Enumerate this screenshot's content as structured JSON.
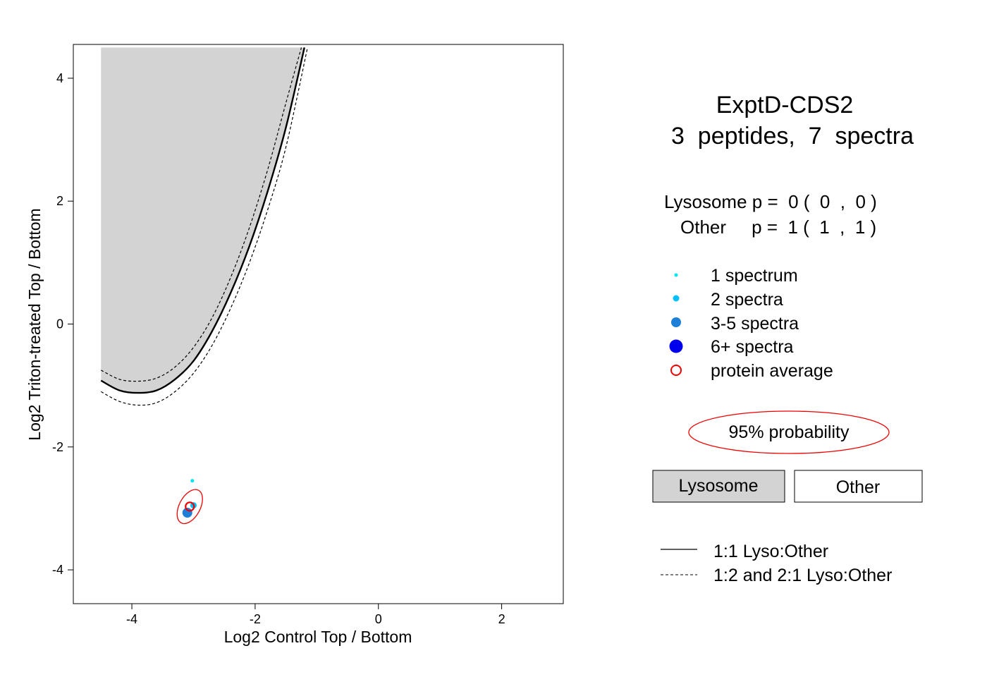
{
  "chart_data": {
    "type": "scatter",
    "title": "ExptD-CDS2",
    "subtitle": "3  peptides,  7  spectra",
    "xlabel": "Log2 Control Top / Bottom",
    "ylabel": "Log2 Triton-treated Top / Bottom",
    "xlim": [
      -4.95,
      3.0
    ],
    "ylim": [
      -4.55,
      4.55
    ],
    "x_ticks": [
      -4,
      -2,
      0,
      2
    ],
    "y_ticks": [
      -4,
      -2,
      0,
      2,
      4
    ],
    "grid": false,
    "legend_position": "right",
    "p_values": {
      "lysosome": "Lysosome p =  0 (  0  ,  0 )",
      "other": "Other     p =  1 (  1  ,  1 )"
    },
    "points": [
      {
        "x": -3.02,
        "y": -2.55,
        "spectra": 1,
        "category": "1 spectrum"
      },
      {
        "x": -3.0,
        "y": -2.95,
        "spectra": 2,
        "category": "2 spectra"
      },
      {
        "x": -3.1,
        "y": -3.07,
        "spectra": 4,
        "category": "3-5 spectra"
      }
    ],
    "protein_average": {
      "x": -3.06,
      "y": -2.97
    },
    "confidence_ellipse": {
      "cx": -3.06,
      "cy": -2.97,
      "rx": 0.17,
      "ry": 0.3,
      "rotation_deg": 28,
      "label": "95% probability"
    },
    "region_lysosome_boundary": [
      {
        "x": -4.5,
        "y": -0.92
      },
      {
        "x": -4.2,
        "y": -1.08
      },
      {
        "x": -3.9,
        "y": -1.12
      },
      {
        "x": -3.6,
        "y": -1.08
      },
      {
        "x": -3.3,
        "y": -0.9
      },
      {
        "x": -3.0,
        "y": -0.6
      },
      {
        "x": -2.7,
        "y": -0.12
      },
      {
        "x": -2.4,
        "y": 0.5
      },
      {
        "x": -2.1,
        "y": 1.25
      },
      {
        "x": -1.8,
        "y": 2.15
      },
      {
        "x": -1.5,
        "y": 3.2
      },
      {
        "x": -1.2,
        "y": 4.5
      }
    ],
    "dashed_upper": [
      {
        "x": -4.5,
        "y": -0.75
      },
      {
        "x": -4.2,
        "y": -0.9
      },
      {
        "x": -3.9,
        "y": -0.93
      },
      {
        "x": -3.6,
        "y": -0.88
      },
      {
        "x": -3.3,
        "y": -0.7
      },
      {
        "x": -3.0,
        "y": -0.38
      },
      {
        "x": -2.7,
        "y": 0.1
      },
      {
        "x": -2.4,
        "y": 0.75
      },
      {
        "x": -2.1,
        "y": 1.55
      },
      {
        "x": -1.8,
        "y": 2.5
      },
      {
        "x": -1.5,
        "y": 3.6
      },
      {
        "x": -1.25,
        "y": 4.5
      }
    ],
    "dashed_lower": [
      {
        "x": -4.5,
        "y": -1.1
      },
      {
        "x": -4.2,
        "y": -1.26
      },
      {
        "x": -3.9,
        "y": -1.32
      },
      {
        "x": -3.6,
        "y": -1.28
      },
      {
        "x": -3.3,
        "y": -1.1
      },
      {
        "x": -3.0,
        "y": -0.8
      },
      {
        "x": -2.7,
        "y": -0.35
      },
      {
        "x": -2.4,
        "y": 0.25
      },
      {
        "x": -2.1,
        "y": 0.98
      },
      {
        "x": -1.8,
        "y": 1.85
      },
      {
        "x": -1.5,
        "y": 2.88
      },
      {
        "x": -1.15,
        "y": 4.5
      }
    ],
    "region_left_x": -4.5,
    "region_top_y": 4.5
  },
  "legend": {
    "items": [
      {
        "label": "1 spectrum",
        "color": "#00e5ee",
        "size": "tiny"
      },
      {
        "label": "2 spectra",
        "color": "#00bfff",
        "size": "small"
      },
      {
        "label": "3-5 spectra",
        "color": "#1e7fd8",
        "size": "medium"
      },
      {
        "label": "6+ spectra",
        "color": "#0000ee",
        "size": "large"
      },
      {
        "label": "protein average",
        "color": "#ee0000",
        "size": "ring"
      }
    ],
    "ellipse_label": "95% probability",
    "region_boxes": [
      {
        "label": "Lysosome",
        "fill": "#d3d3d3"
      },
      {
        "label": "Other",
        "fill": "#ffffff"
      }
    ],
    "lines": [
      {
        "label": "1:1 Lyso:Other",
        "style": "solid"
      },
      {
        "label": "1:2 and 2:1 Lyso:Other",
        "style": "dashed"
      }
    ]
  },
  "colors": {
    "ellipse": "#ee0000",
    "lyso_region": "#d3d3d3"
  }
}
